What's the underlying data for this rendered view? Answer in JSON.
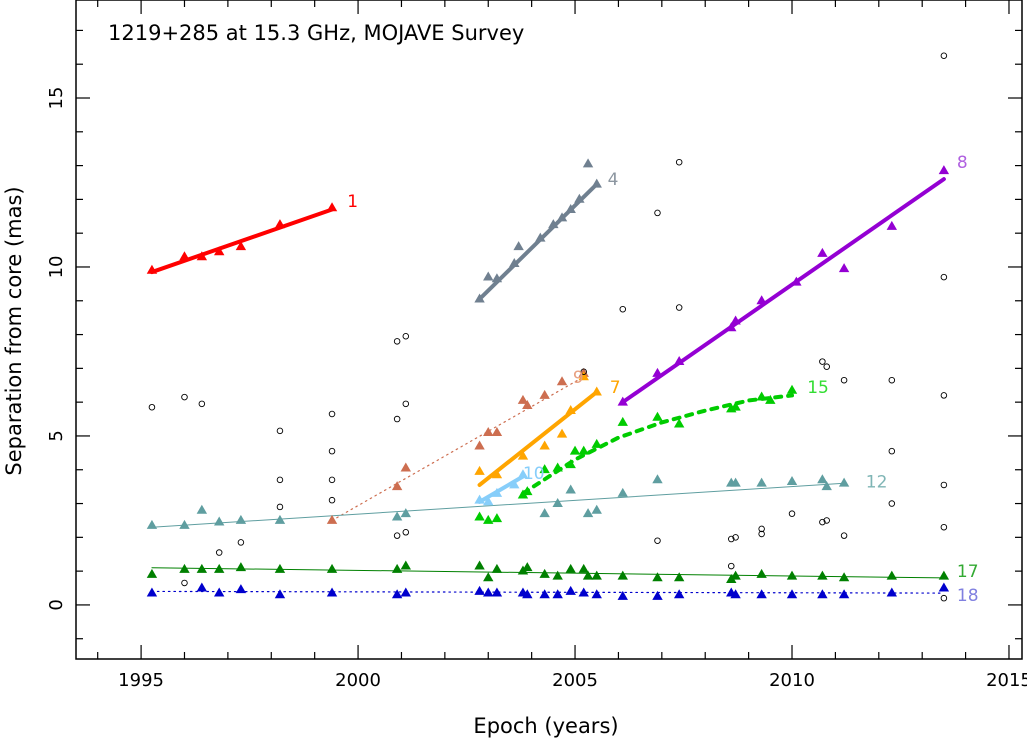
{
  "chart_data": {
    "type": "scatter",
    "title": "1219+285 at 15.3 GHz, MOJAVE Survey",
    "xlabel": "Epoch (years)",
    "ylabel": "Separation from core (mas)",
    "xlim": [
      1993.5,
      2015.3
    ],
    "ylim": [
      -1.6,
      17.9
    ],
    "x_ticks": [
      "1995",
      "2000",
      "2005",
      "2010",
      "2015"
    ],
    "y_ticks": [
      "0",
      "5",
      "10",
      "15"
    ],
    "grid": false,
    "legend": "none",
    "series": [
      {
        "name": "1",
        "color": "#ff0000",
        "marker": "triangle",
        "points": [
          [
            1995.25,
            9.9
          ],
          [
            1996.0,
            10.3
          ],
          [
            1996.4,
            10.3
          ],
          [
            1996.8,
            10.45
          ],
          [
            1997.3,
            10.6
          ],
          [
            1998.2,
            11.25
          ],
          [
            1999.4,
            11.75
          ]
        ],
        "fit": {
          "x": [
            1995.25,
            1999.4
          ],
          "y": [
            9.85,
            11.7
          ],
          "style": "solid",
          "width": 4
        }
      },
      {
        "name": "4",
        "color": "#708090",
        "marker": "triangle",
        "points": [
          [
            2002.8,
            9.05
          ],
          [
            2003.0,
            9.7
          ],
          [
            2003.2,
            9.65
          ],
          [
            2003.6,
            10.1
          ],
          [
            2003.7,
            10.6
          ],
          [
            2004.2,
            10.85
          ],
          [
            2004.5,
            11.25
          ],
          [
            2004.7,
            11.45
          ],
          [
            2004.9,
            11.7
          ],
          [
            2005.1,
            12.0
          ],
          [
            2005.3,
            13.05
          ],
          [
            2005.5,
            12.45
          ]
        ],
        "fit": {
          "x": [
            2002.8,
            2005.5
          ],
          "y": [
            9.05,
            12.45
          ],
          "style": "solid",
          "width": 4
        }
      },
      {
        "name": "8",
        "color": "#9400d3",
        "marker": "triangle",
        "points": [
          [
            2006.1,
            6.0
          ],
          [
            2006.9,
            6.85
          ],
          [
            2007.4,
            7.2
          ],
          [
            2008.6,
            8.2
          ],
          [
            2008.7,
            8.4
          ],
          [
            2009.3,
            9.0
          ],
          [
            2010.1,
            9.55
          ],
          [
            2010.7,
            10.4
          ],
          [
            2011.2,
            9.95
          ],
          [
            2012.3,
            11.2
          ],
          [
            2013.5,
            12.85
          ]
        ],
        "fit": {
          "x": [
            2006.1,
            2013.5
          ],
          "y": [
            6.0,
            12.6
          ],
          "style": "solid",
          "width": 4
        }
      },
      {
        "name": "9",
        "color": "#cd6e50",
        "marker": "triangle",
        "points": [
          [
            1999.4,
            2.5
          ],
          [
            2000.9,
            3.5
          ],
          [
            2001.1,
            4.05
          ],
          [
            2002.8,
            4.7
          ],
          [
            2003.0,
            5.1
          ],
          [
            2003.2,
            5.1
          ],
          [
            2003.8,
            6.05
          ],
          [
            2003.9,
            5.9
          ],
          [
            2004.3,
            6.2
          ],
          [
            2004.7,
            6.6
          ],
          [
            2005.2,
            6.85
          ]
        ],
        "fit": {
          "x": [
            1999.4,
            2005.2
          ],
          "y": [
            2.5,
            6.75
          ],
          "style": "dotted",
          "width": 1.2
        }
      },
      {
        "name": "7",
        "color": "#ffa500",
        "marker": "triangle",
        "points": [
          [
            2002.8,
            3.95
          ],
          [
            2003.2,
            3.85
          ],
          [
            2003.8,
            4.4
          ],
          [
            2004.3,
            4.7
          ],
          [
            2004.7,
            5.05
          ],
          [
            2004.9,
            5.75
          ],
          [
            2005.2,
            6.75
          ],
          [
            2005.5,
            6.3
          ]
        ],
        "fit": {
          "x": [
            2002.8,
            2005.5
          ],
          "y": [
            3.55,
            6.3
          ],
          "style": "solid",
          "width": 4
        }
      },
      {
        "name": "10",
        "color": "#87cefa",
        "marker": "triangle",
        "points": [
          [
            2002.8,
            3.1
          ],
          [
            2003.0,
            3.05
          ],
          [
            2003.2,
            3.3
          ],
          [
            2003.6,
            3.55
          ],
          [
            2003.8,
            3.85
          ]
        ],
        "fit": {
          "x": [
            2002.8,
            2003.8
          ],
          "y": [
            3.05,
            3.8
          ],
          "style": "solid",
          "width": 4
        }
      },
      {
        "name": "15",
        "color": "#00cc00",
        "marker": "triangle",
        "points": [
          [
            2002.8,
            2.6
          ],
          [
            2003.0,
            2.5
          ],
          [
            2003.2,
            2.55
          ],
          [
            2003.8,
            3.25
          ],
          [
            2003.9,
            3.35
          ],
          [
            2004.3,
            4.0
          ],
          [
            2004.6,
            4.05
          ],
          [
            2004.9,
            4.15
          ],
          [
            2005.0,
            4.55
          ],
          [
            2005.2,
            4.55
          ],
          [
            2005.5,
            4.75
          ],
          [
            2006.1,
            5.4
          ],
          [
            2006.9,
            5.55
          ],
          [
            2007.4,
            5.35
          ],
          [
            2008.6,
            5.8
          ],
          [
            2008.7,
            5.85
          ],
          [
            2009.3,
            6.15
          ],
          [
            2009.5,
            6.05
          ],
          [
            2010.0,
            6.35
          ]
        ],
        "fit": {
          "x": [
            2003.8,
            2005.0,
            2006.0,
            2007.0,
            2008.0,
            2009.0,
            2010.0
          ],
          "y": [
            3.3,
            4.3,
            4.95,
            5.4,
            5.75,
            6.05,
            6.2
          ],
          "style": "dotted",
          "width": 4
        }
      },
      {
        "name": "12",
        "color": "#5f9ea0",
        "marker": "triangle",
        "points": [
          [
            1995.25,
            2.35
          ],
          [
            1996.0,
            2.35
          ],
          [
            1996.4,
            2.8
          ],
          [
            1996.8,
            2.45
          ],
          [
            1997.3,
            2.5
          ],
          [
            1998.2,
            2.5
          ],
          [
            2000.9,
            2.6
          ],
          [
            2001.1,
            2.7
          ],
          [
            2004.3,
            2.7
          ],
          [
            2004.6,
            3.0
          ],
          [
            2004.9,
            3.4
          ],
          [
            2005.3,
            2.7
          ],
          [
            2005.5,
            2.8
          ],
          [
            2006.1,
            3.3
          ],
          [
            2006.9,
            3.7
          ],
          [
            2008.6,
            3.6
          ],
          [
            2008.7,
            3.6
          ],
          [
            2009.3,
            3.6
          ],
          [
            2010.0,
            3.65
          ],
          [
            2010.7,
            3.7
          ],
          [
            2010.8,
            3.5
          ],
          [
            2011.2,
            3.6
          ]
        ],
        "fit": {
          "x": [
            1995.25,
            2011.2
          ],
          "y": [
            2.3,
            3.6
          ],
          "style": "solid",
          "width": 1
        }
      },
      {
        "name": "17",
        "color": "#008000",
        "marker": "triangle",
        "points": [
          [
            1995.25,
            0.9
          ],
          [
            1996.0,
            1.05
          ],
          [
            1996.4,
            1.05
          ],
          [
            1996.8,
            1.05
          ],
          [
            1997.3,
            1.1
          ],
          [
            1998.2,
            1.05
          ],
          [
            1999.4,
            1.05
          ],
          [
            2000.9,
            1.05
          ],
          [
            2001.1,
            1.15
          ],
          [
            2002.8,
            1.15
          ],
          [
            2003.0,
            0.8
          ],
          [
            2003.2,
            1.05
          ],
          [
            2003.8,
            1.0
          ],
          [
            2003.9,
            1.1
          ],
          [
            2004.3,
            0.9
          ],
          [
            2004.6,
            0.85
          ],
          [
            2004.9,
            1.05
          ],
          [
            2005.2,
            1.05
          ],
          [
            2005.3,
            0.85
          ],
          [
            2005.5,
            0.85
          ],
          [
            2006.1,
            0.85
          ],
          [
            2006.9,
            0.8
          ],
          [
            2007.4,
            0.8
          ],
          [
            2008.6,
            0.75
          ],
          [
            2008.7,
            0.85
          ],
          [
            2009.3,
            0.9
          ],
          [
            2010.0,
            0.85
          ],
          [
            2010.7,
            0.85
          ],
          [
            2011.2,
            0.8
          ],
          [
            2012.3,
            0.85
          ],
          [
            2013.5,
            0.85
          ]
        ],
        "fit": {
          "x": [
            1995.25,
            2013.5
          ],
          "y": [
            1.1,
            0.8
          ],
          "style": "solid",
          "width": 1
        }
      },
      {
        "name": "18",
        "color": "#0000cd",
        "marker": "triangle",
        "points": [
          [
            1995.25,
            0.35
          ],
          [
            1996.4,
            0.5
          ],
          [
            1996.8,
            0.35
          ],
          [
            1997.3,
            0.45
          ],
          [
            1998.2,
            0.3
          ],
          [
            1999.4,
            0.35
          ],
          [
            2000.9,
            0.3
          ],
          [
            2001.1,
            0.35
          ],
          [
            2002.8,
            0.4
          ],
          [
            2003.0,
            0.35
          ],
          [
            2003.2,
            0.35
          ],
          [
            2003.8,
            0.35
          ],
          [
            2003.9,
            0.3
          ],
          [
            2004.3,
            0.3
          ],
          [
            2004.6,
            0.3
          ],
          [
            2004.9,
            0.4
          ],
          [
            2005.2,
            0.35
          ],
          [
            2005.5,
            0.3
          ],
          [
            2006.1,
            0.25
          ],
          [
            2006.9,
            0.25
          ],
          [
            2007.4,
            0.3
          ],
          [
            2008.6,
            0.35
          ],
          [
            2008.7,
            0.3
          ],
          [
            2009.3,
            0.3
          ],
          [
            2010.0,
            0.3
          ],
          [
            2010.7,
            0.3
          ],
          [
            2011.2,
            0.3
          ],
          [
            2012.3,
            0.35
          ],
          [
            2013.5,
            0.5
          ]
        ],
        "fit": {
          "x": [
            1995.25,
            2013.5
          ],
          "y": [
            0.4,
            0.35
          ],
          "style": "dotted",
          "width": 1.2
        }
      },
      {
        "name": "",
        "color": "#000000",
        "marker": "open-circle",
        "points": [
          [
            1995.25,
            5.85
          ],
          [
            1996.0,
            6.15
          ],
          [
            1996.0,
            0.65
          ],
          [
            1996.4,
            5.95
          ],
          [
            1996.8,
            1.55
          ],
          [
            1997.3,
            1.85
          ],
          [
            1998.2,
            5.15
          ],
          [
            1998.2,
            3.7
          ],
          [
            1998.2,
            2.9
          ],
          [
            1999.4,
            5.65
          ],
          [
            1999.4,
            4.55
          ],
          [
            1999.4,
            3.7
          ],
          [
            1999.4,
            3.1
          ],
          [
            2000.9,
            7.8
          ],
          [
            2001.1,
            7.95
          ],
          [
            2000.9,
            5.5
          ],
          [
            2001.1,
            5.95
          ],
          [
            2000.9,
            2.05
          ],
          [
            2001.1,
            2.15
          ],
          [
            2005.2,
            6.9
          ],
          [
            2006.1,
            8.75
          ],
          [
            2006.9,
            11.6
          ],
          [
            2006.9,
            1.9
          ],
          [
            2007.4,
            13.1
          ],
          [
            2007.4,
            8.8
          ],
          [
            2008.6,
            1.95
          ],
          [
            2008.7,
            2.0
          ],
          [
            2008.6,
            1.15
          ],
          [
            2009.3,
            2.25
          ],
          [
            2009.3,
            2.1
          ],
          [
            2010.0,
            2.7
          ],
          [
            2010.7,
            7.2
          ],
          [
            2010.8,
            7.05
          ],
          [
            2010.7,
            2.45
          ],
          [
            2010.8,
            2.5
          ],
          [
            2011.2,
            6.65
          ],
          [
            2011.2,
            2.05
          ],
          [
            2012.3,
            6.65
          ],
          [
            2012.3,
            4.55
          ],
          [
            2012.3,
            3.0
          ],
          [
            2013.5,
            16.25
          ],
          [
            2013.5,
            9.7
          ],
          [
            2013.5,
            6.2
          ],
          [
            2013.5,
            3.55
          ],
          [
            2013.5,
            2.3
          ],
          [
            2013.5,
            0.2
          ]
        ]
      }
    ],
    "annotations": [
      {
        "text": "1",
        "x": 1999.75,
        "y": 11.95,
        "color": "#ff0000"
      },
      {
        "text": "4",
        "x": 2005.75,
        "y": 12.6,
        "color": "#8c96a0"
      },
      {
        "text": "8",
        "x": 2013.8,
        "y": 13.1,
        "color": "#b060e0"
      },
      {
        "text": "9",
        "x": 2004.95,
        "y": 6.75,
        "color": "#e8a080"
      },
      {
        "text": "7",
        "x": 2005.8,
        "y": 6.45,
        "color": "#ffa500"
      },
      {
        "text": "10",
        "x": 2003.8,
        "y": 3.9,
        "color": "#87cefa"
      },
      {
        "text": "15",
        "x": 2010.35,
        "y": 6.45,
        "color": "#33dd33"
      },
      {
        "text": "12",
        "x": 2011.7,
        "y": 3.65,
        "color": "#7fb5b5"
      },
      {
        "text": "17",
        "x": 2013.8,
        "y": 1.0,
        "color": "#33aa33"
      },
      {
        "text": "18",
        "x": 2013.8,
        "y": 0.3,
        "color": "#8080e0"
      }
    ]
  }
}
